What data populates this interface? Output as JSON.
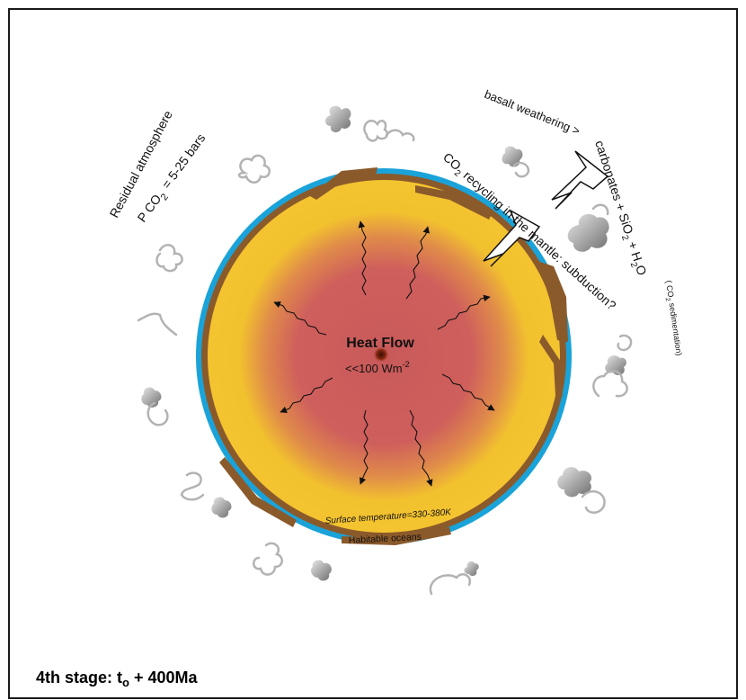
{
  "atmosphere": {
    "title": "Residual atmosphere",
    "pressure_prefix": "P",
    "pressure_species": "CO",
    "pressure_sub": "2",
    "pressure_value": "= 5-25 bars"
  },
  "weathering": {
    "line1": "basalt weathering >",
    "line2_a": "carbonates + SiO",
    "line2_sub": "2",
    "line2_b": " + H",
    "line2_sub2": "2",
    "line2_c": "O",
    "note_a": "( CO",
    "note_sub": "2",
    "note_b": " sedimentation)"
  },
  "recycling": {
    "a": "CO",
    "sub": "2",
    "b": " recycling in the mantle: subduction?"
  },
  "core": {
    "title": "Heat Flow",
    "value": "<<100 Wm",
    "unit_sup": "-2"
  },
  "surface": {
    "temperature": "Surface temperature=330-380K",
    "oceans": "Habitable oceans"
  },
  "stage": {
    "prefix": "4th stage: t",
    "sub": "o",
    "suffix": " + 400Ma"
  },
  "colors": {
    "ocean": "#1aa3d9",
    "crust": "#8b5a2b",
    "mantle_outer": "#f2c12e",
    "mantle_inner": "#cd5b5b"
  }
}
